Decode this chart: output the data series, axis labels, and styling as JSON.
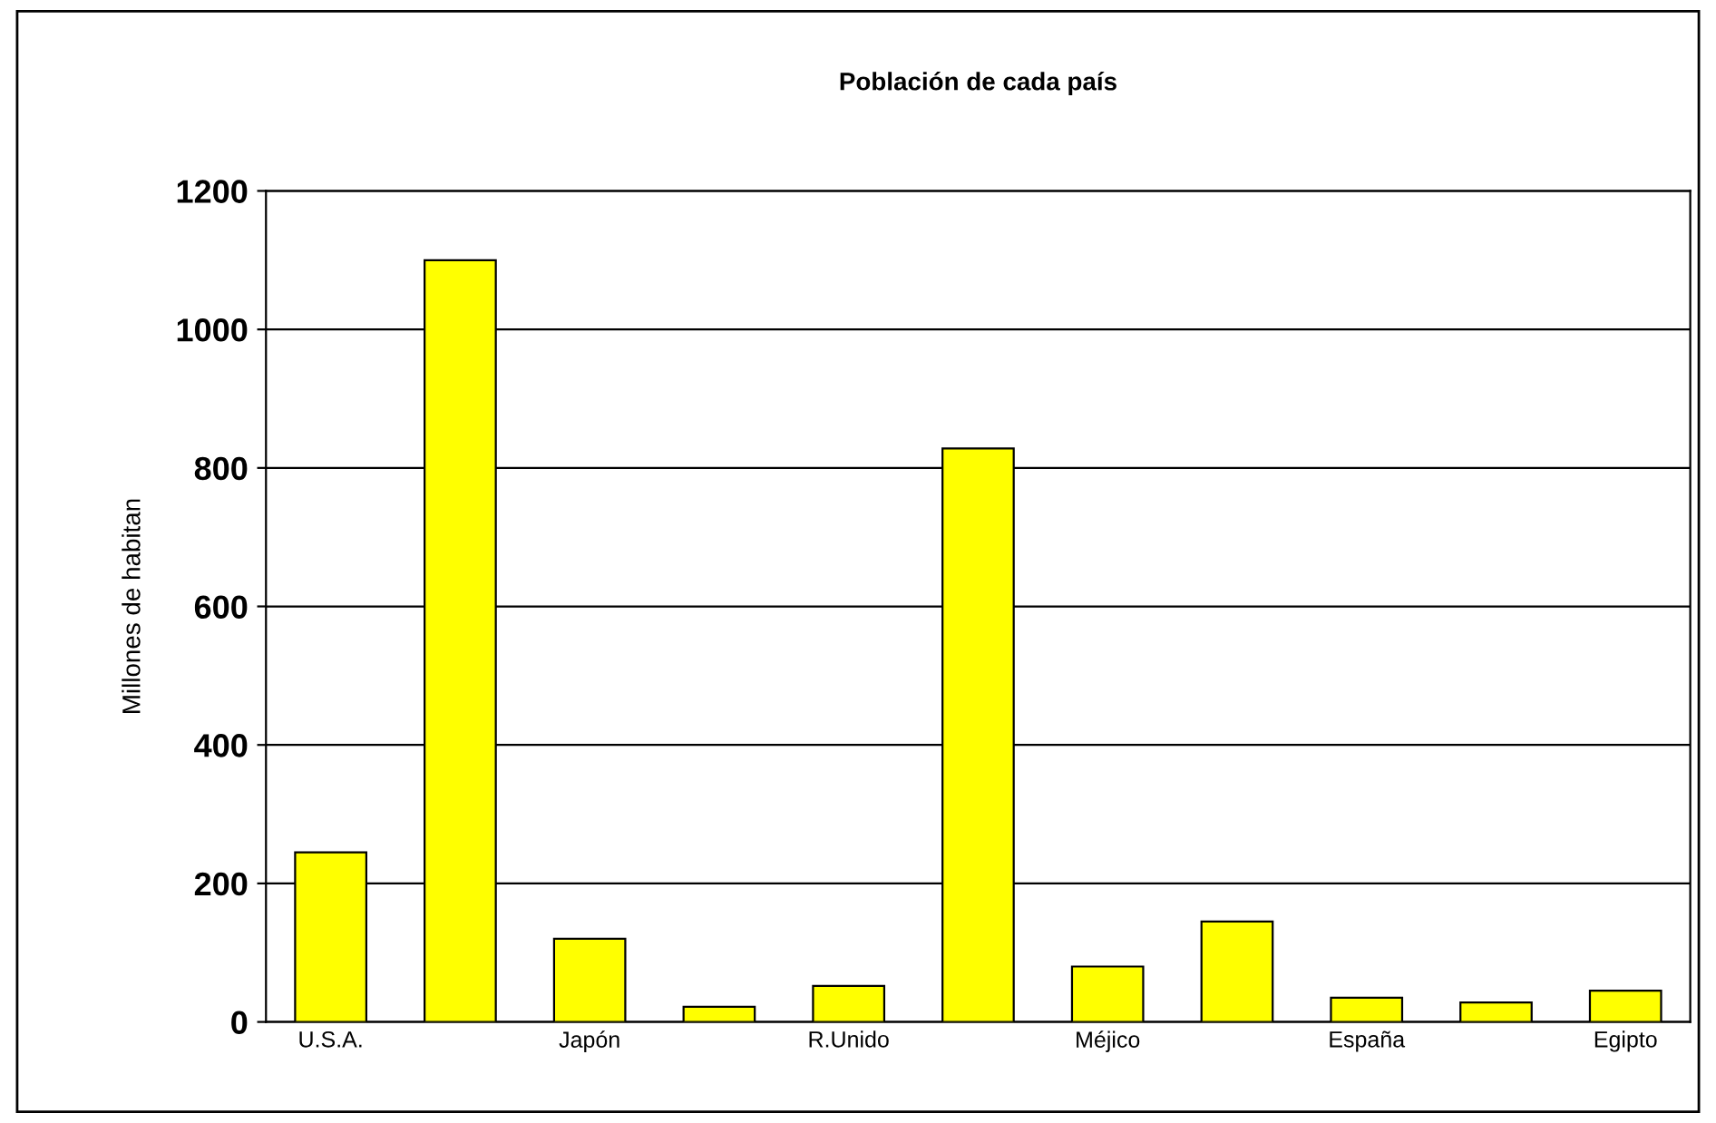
{
  "chart_data": {
    "type": "bar",
    "title": "Población de cada país",
    "ylabel": "Millones de habitan",
    "categories": [
      "U.S.A.",
      null,
      "Japón",
      null,
      "R.Unido",
      null,
      "Méjico",
      null,
      "España",
      null,
      "Egipto"
    ],
    "values": [
      245,
      1100,
      120,
      22,
      52,
      828,
      80,
      145,
      35,
      28,
      45
    ],
    "color": "#ffff00",
    "ylim": [
      0,
      1200
    ],
    "yticks": [
      0,
      200,
      400,
      600,
      800,
      1000,
      1200
    ],
    "grid": "y",
    "legend": false
  }
}
